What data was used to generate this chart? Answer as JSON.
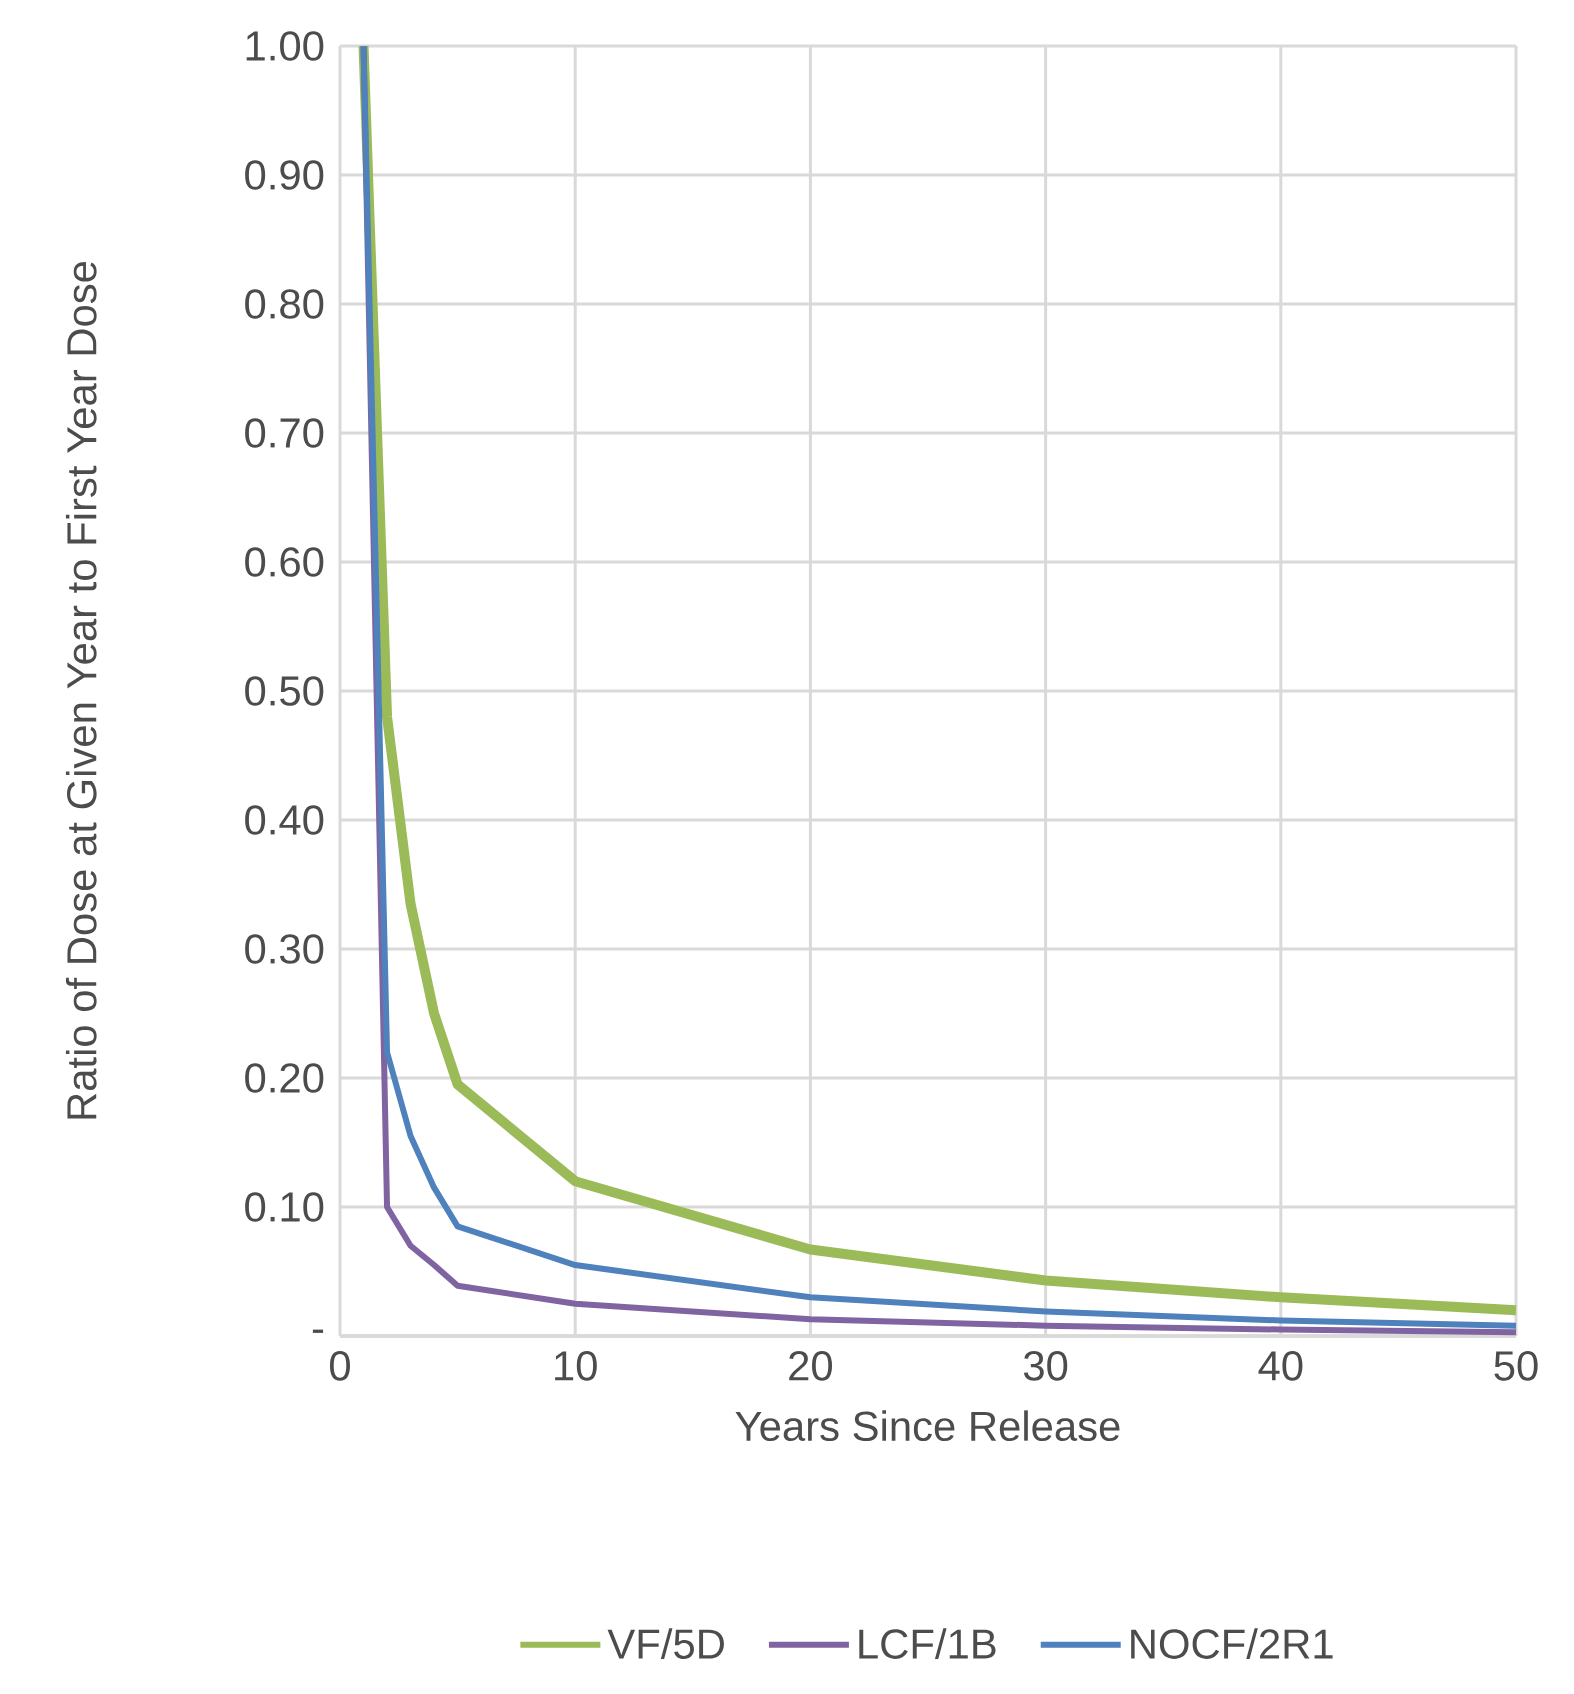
{
  "chart_data": {
    "type": "line",
    "xlabel": "Years Since Release",
    "ylabel": "Ratio of Dose at Given Year to First Year Dose",
    "x": [
      1,
      2,
      3,
      4,
      5,
      10,
      20,
      30,
      40,
      50
    ],
    "series": [
      {
        "name": "VF/5D",
        "color": "#9bbb59",
        "values": [
          1.0,
          0.48,
          0.335,
          0.25,
          0.195,
          0.12,
          0.067,
          0.043,
          0.03,
          0.02
        ]
      },
      {
        "name": "LCF/1B",
        "color": "#8064a2",
        "values": [
          1.0,
          0.1,
          0.07,
          0.055,
          0.039,
          0.025,
          0.013,
          0.008,
          0.005,
          0.003
        ]
      },
      {
        "name": "NOCF/2R1",
        "color": "#4f81bd",
        "values": [
          1.0,
          0.22,
          0.155,
          0.115,
          0.085,
          0.055,
          0.03,
          0.019,
          0.012,
          0.008
        ]
      }
    ],
    "xlim": [
      0,
      50
    ],
    "xticks": [
      0,
      10,
      20,
      30,
      40,
      50
    ],
    "ylim": [
      0,
      1.0
    ],
    "yticks": [
      {
        "value": 0,
        "label": "-"
      },
      {
        "value": 0.1,
        "label": "0.10"
      },
      {
        "value": 0.2,
        "label": "0.20"
      },
      {
        "value": 0.3,
        "label": "0.30"
      },
      {
        "value": 0.4,
        "label": "0.40"
      },
      {
        "value": 0.5,
        "label": "0.50"
      },
      {
        "value": 0.6,
        "label": "0.60"
      },
      {
        "value": 0.7,
        "label": "0.70"
      },
      {
        "value": 0.8,
        "label": "0.80"
      },
      {
        "value": 0.9,
        "label": "0.90"
      },
      {
        "value": 1.0,
        "label": "1.00"
      }
    ],
    "grid": true,
    "legend": "bottom",
    "marker": "none",
    "line_style": "solid"
  }
}
